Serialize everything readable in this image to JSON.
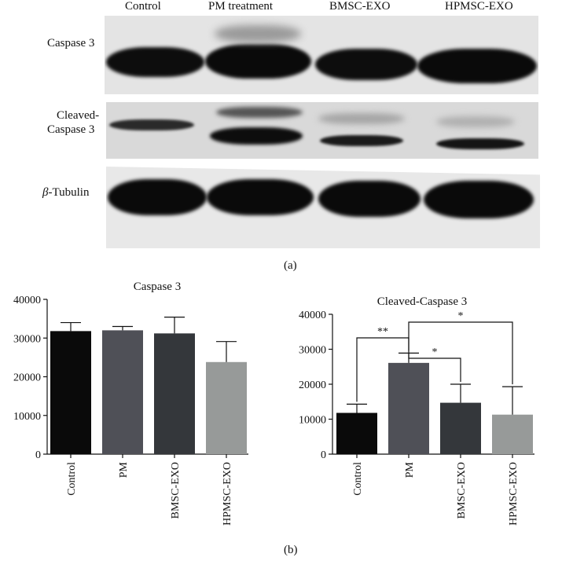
{
  "panel_a": {
    "lane_labels": [
      "Control",
      "PM treatment",
      "BMSC-EXO",
      "HPMSC-EXO"
    ],
    "row_labels": {
      "caspase3": "Caspase 3",
      "cleaved_line1": "Cleaved-",
      "cleaved_line2": "Caspase 3",
      "tubulin_symbol": "β",
      "tubulin_text": "-Tubulin"
    },
    "sublabel": "(a)"
  },
  "panel_b": {
    "sublabel": "(b)"
  },
  "chart_data": [
    {
      "type": "bar",
      "title": "Caspase 3",
      "categories": [
        "Control",
        "PM",
        "BMSC-EXO",
        "HPMSC-EXO"
      ],
      "values": [
        31800,
        32000,
        31200,
        23800
      ],
      "errors": [
        2200,
        1000,
        4200,
        5300
      ],
      "colors": [
        "#0a0a0a",
        "#4f5057",
        "#34373b",
        "#979a99"
      ],
      "ylim": [
        0,
        40000
      ],
      "yticks": [
        0,
        10000,
        20000,
        30000,
        40000
      ],
      "significance": []
    },
    {
      "type": "bar",
      "title": "Cleaved-Caspase 3",
      "categories": [
        "Control",
        "PM",
        "BMSC-EXO",
        "HPMSC-EXO"
      ],
      "values": [
        11800,
        26100,
        14700,
        11300
      ],
      "errors": [
        2500,
        2800,
        5300,
        8000
      ],
      "colors": [
        "#0a0a0a",
        "#4f5057",
        "#34373b",
        "#979a99"
      ],
      "ylim": [
        0,
        40000
      ],
      "yticks": [
        0,
        10000,
        20000,
        30000,
        40000
      ],
      "significance": [
        {
          "from": 0,
          "to": 1,
          "label": "**"
        },
        {
          "from": 1,
          "to": 2,
          "label": "*"
        },
        {
          "from": 1,
          "to": 3,
          "label": "*"
        }
      ]
    }
  ]
}
